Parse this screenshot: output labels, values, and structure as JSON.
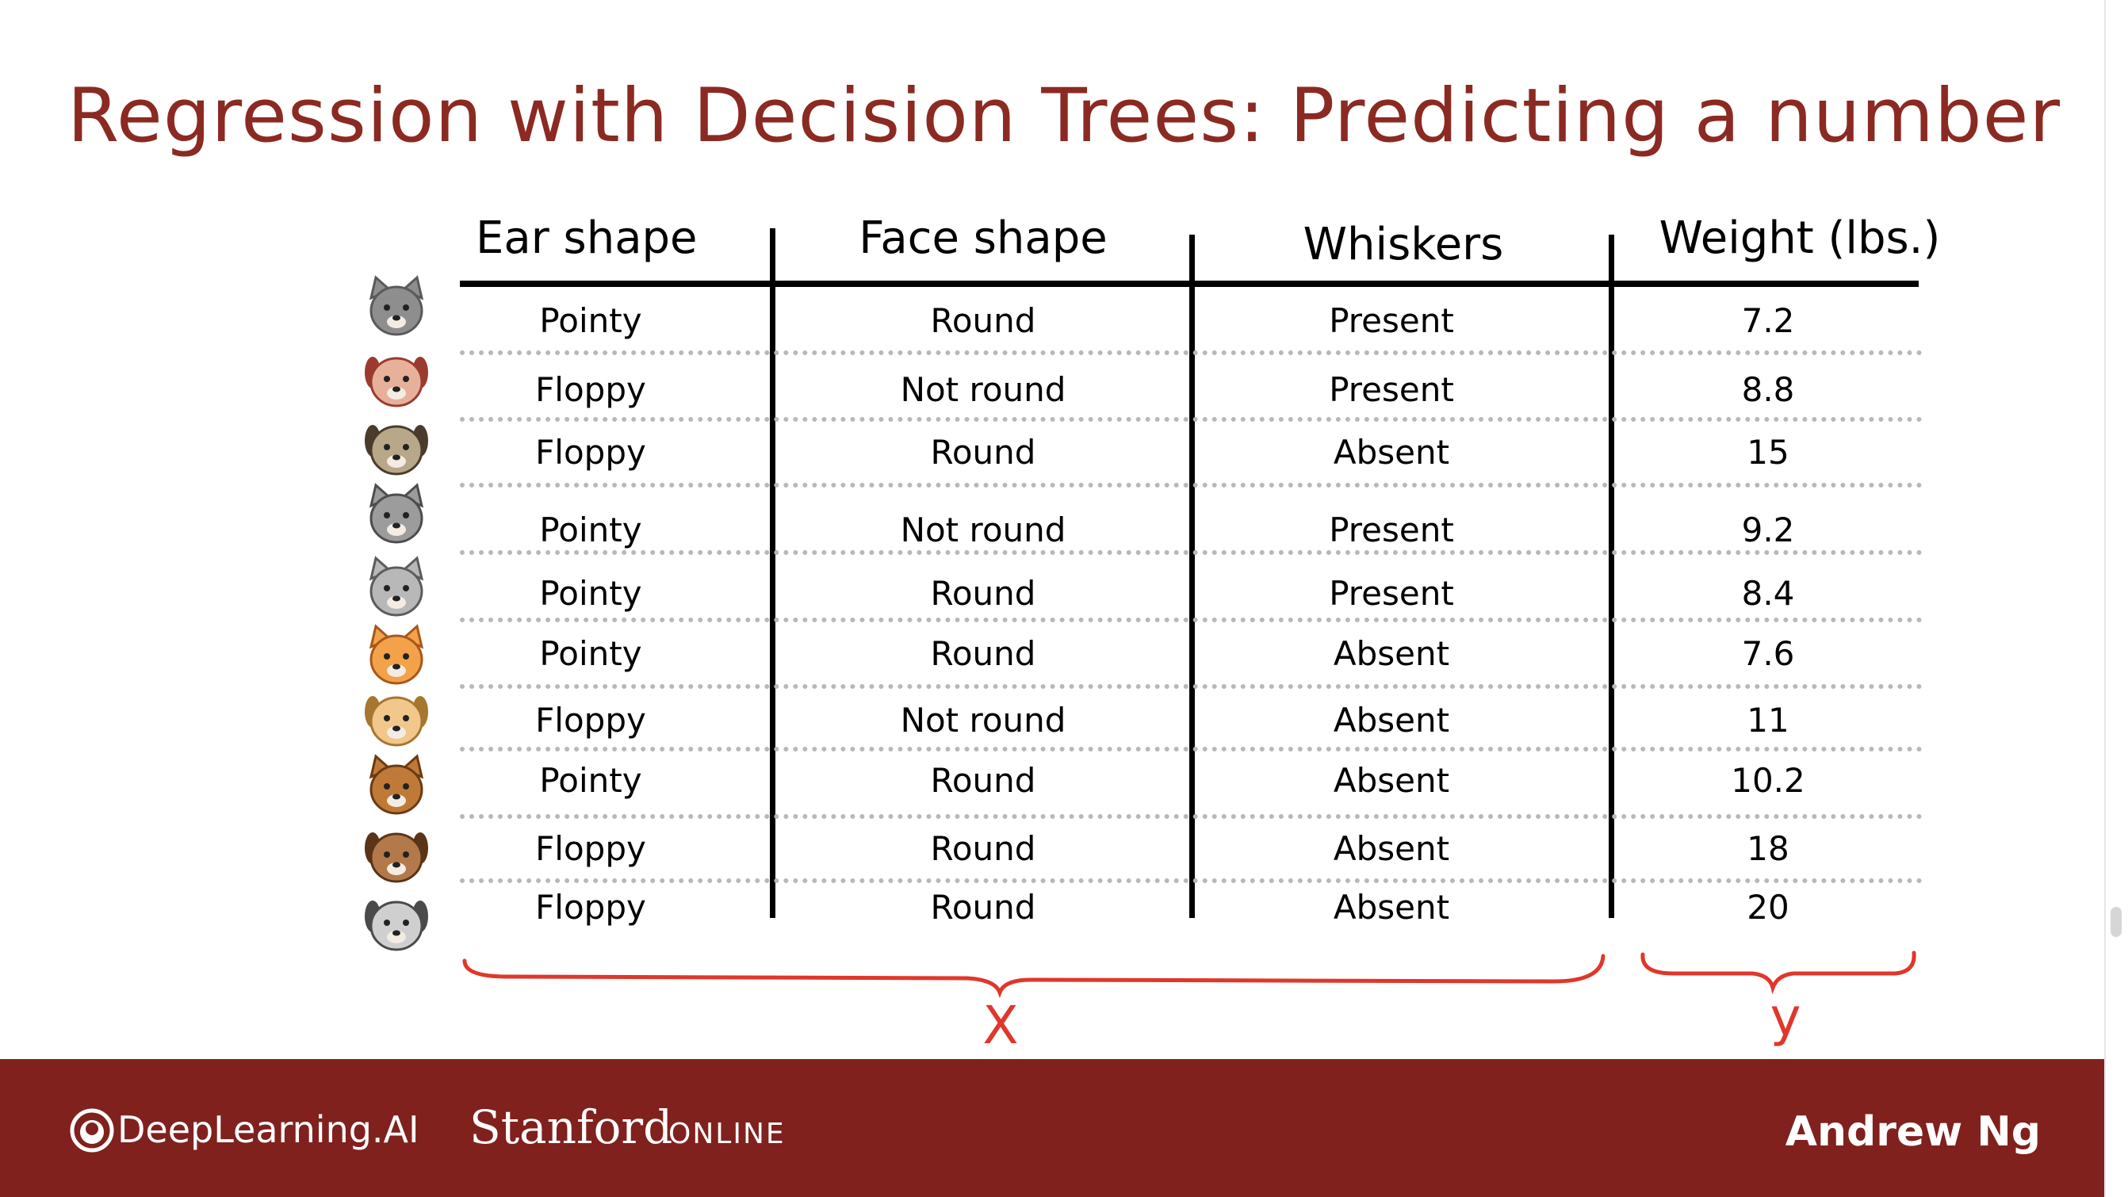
{
  "slide": {
    "title": "Regression with Decision Trees: Predicting a number",
    "headers": [
      "Ear shape",
      "Face shape",
      "Whiskers",
      "Weight (lbs.)"
    ],
    "rows": [
      {
        "icon": "gray-cat-icon",
        "ear": "Pointy",
        "face": "Round",
        "whiskers": "Present",
        "weight": "7.2"
      },
      {
        "icon": "pink-dog-icon",
        "ear": "Floppy",
        "face": "Not round",
        "whiskers": "Present",
        "weight": "8.8"
      },
      {
        "icon": "pug-dog-icon",
        "ear": "Floppy",
        "face": "Round",
        "whiskers": "Absent",
        "weight": "15"
      },
      {
        "icon": "gray-cat-pointy-icon",
        "ear": "Pointy",
        "face": "Not round",
        "whiskers": "Present",
        "weight": "9.2"
      },
      {
        "icon": "silver-cat-icon",
        "ear": "Pointy",
        "face": "Round",
        "whiskers": "Present",
        "weight": "8.4"
      },
      {
        "icon": "orange-cat-icon",
        "ear": "Pointy",
        "face": "Round",
        "whiskers": "Absent",
        "weight": "7.6"
      },
      {
        "icon": "tan-dog-icon",
        "ear": "Floppy",
        "face": "Not round",
        "whiskers": "Absent",
        "weight": "11"
      },
      {
        "icon": "brown-cat-icon",
        "ear": "Pointy",
        "face": "Round",
        "whiskers": "Absent",
        "weight": "10.2"
      },
      {
        "icon": "brown-dog-icon",
        "ear": "Floppy",
        "face": "Round",
        "whiskers": "Absent",
        "weight": "18"
      },
      {
        "icon": "gray-dog-icon",
        "ear": "Floppy",
        "face": "Round",
        "whiskers": "Absent",
        "weight": "20"
      }
    ],
    "annotations": {
      "x_label": "X",
      "y_label": "y",
      "color": "#e0372b"
    }
  },
  "footer": {
    "brand": "DeepLearning.AI",
    "partner": "Stanford",
    "partner_suffix": "ONLINE",
    "author": "Andrew Ng",
    "background": "#80211e"
  },
  "colors": {
    "title": "#8b2a22"
  }
}
